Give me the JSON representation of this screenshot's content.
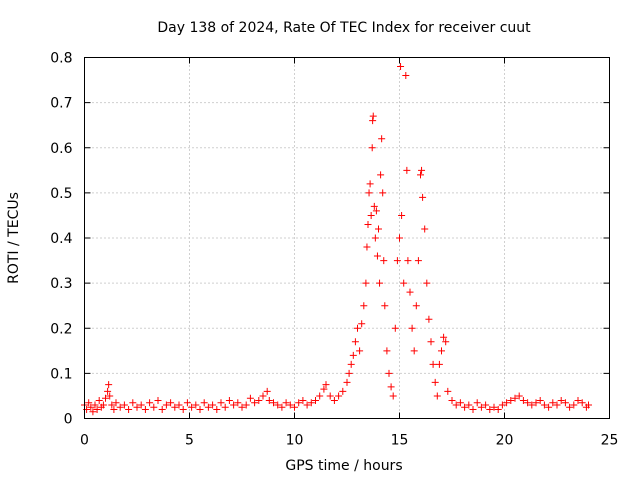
{
  "chart_data": {
    "type": "scatter",
    "title": "Day 138 of 2024, Rate Of TEC Index for receiver cuut",
    "xlabel": "GPS time / hours",
    "ylabel": "ROTI / TECUs",
    "xlim": [
      0,
      25
    ],
    "ylim": [
      0,
      0.8
    ],
    "xticks": [
      0,
      5,
      10,
      15,
      20,
      25
    ],
    "yticks": [
      0,
      0.1,
      0.2,
      0.3,
      0.4,
      0.5,
      0.6,
      0.7,
      0.8
    ],
    "grid": true,
    "marker": "+",
    "color": "#ff0000",
    "series": [
      {
        "name": "ROTI",
        "points": [
          [
            0.0,
            0.03
          ],
          [
            0.1,
            0.02
          ],
          [
            0.2,
            0.035
          ],
          [
            0.3,
            0.025
          ],
          [
            0.4,
            0.015
          ],
          [
            0.5,
            0.03
          ],
          [
            0.6,
            0.02
          ],
          [
            0.7,
            0.04
          ],
          [
            0.8,
            0.025
          ],
          [
            0.9,
            0.03
          ],
          [
            1.0,
            0.045
          ],
          [
            1.1,
            0.06
          ],
          [
            1.15,
            0.075
          ],
          [
            1.2,
            0.05
          ],
          [
            1.3,
            0.03
          ],
          [
            1.4,
            0.02
          ],
          [
            1.5,
            0.035
          ],
          [
            1.7,
            0.025
          ],
          [
            1.9,
            0.03
          ],
          [
            2.1,
            0.02
          ],
          [
            2.3,
            0.035
          ],
          [
            2.5,
            0.025
          ],
          [
            2.7,
            0.03
          ],
          [
            2.9,
            0.02
          ],
          [
            3.1,
            0.035
          ],
          [
            3.3,
            0.025
          ],
          [
            3.5,
            0.04
          ],
          [
            3.7,
            0.02
          ],
          [
            3.9,
            0.03
          ],
          [
            4.1,
            0.035
          ],
          [
            4.3,
            0.025
          ],
          [
            4.5,
            0.03
          ],
          [
            4.7,
            0.02
          ],
          [
            4.9,
            0.035
          ],
          [
            5.1,
            0.025
          ],
          [
            5.3,
            0.03
          ],
          [
            5.5,
            0.02
          ],
          [
            5.7,
            0.035
          ],
          [
            5.9,
            0.025
          ],
          [
            6.1,
            0.03
          ],
          [
            6.3,
            0.02
          ],
          [
            6.5,
            0.035
          ],
          [
            6.7,
            0.025
          ],
          [
            6.9,
            0.04
          ],
          [
            7.1,
            0.03
          ],
          [
            7.3,
            0.035
          ],
          [
            7.5,
            0.025
          ],
          [
            7.7,
            0.03
          ],
          [
            7.9,
            0.045
          ],
          [
            8.1,
            0.035
          ],
          [
            8.3,
            0.04
          ],
          [
            8.5,
            0.05
          ],
          [
            8.7,
            0.06
          ],
          [
            8.8,
            0.04
          ],
          [
            9.0,
            0.035
          ],
          [
            9.2,
            0.03
          ],
          [
            9.4,
            0.025
          ],
          [
            9.6,
            0.035
          ],
          [
            9.8,
            0.03
          ],
          [
            10.0,
            0.025
          ],
          [
            10.2,
            0.035
          ],
          [
            10.4,
            0.04
          ],
          [
            10.6,
            0.03
          ],
          [
            10.8,
            0.035
          ],
          [
            11.0,
            0.04
          ],
          [
            11.2,
            0.05
          ],
          [
            11.4,
            0.065
          ],
          [
            11.5,
            0.075
          ],
          [
            11.7,
            0.05
          ],
          [
            11.9,
            0.04
          ],
          [
            12.1,
            0.05
          ],
          [
            12.3,
            0.06
          ],
          [
            12.5,
            0.08
          ],
          [
            12.6,
            0.1
          ],
          [
            12.7,
            0.12
          ],
          [
            12.8,
            0.14
          ],
          [
            12.9,
            0.17
          ],
          [
            13.0,
            0.2
          ],
          [
            13.1,
            0.15
          ],
          [
            13.2,
            0.21
          ],
          [
            13.3,
            0.25
          ],
          [
            13.4,
            0.3
          ],
          [
            13.45,
            0.38
          ],
          [
            13.5,
            0.43
          ],
          [
            13.55,
            0.5
          ],
          [
            13.6,
            0.52
          ],
          [
            13.65,
            0.45
          ],
          [
            13.7,
            0.6
          ],
          [
            13.72,
            0.66
          ],
          [
            13.75,
            0.67
          ],
          [
            13.8,
            0.47
          ],
          [
            13.85,
            0.4
          ],
          [
            13.9,
            0.46
          ],
          [
            13.95,
            0.36
          ],
          [
            14.0,
            0.42
          ],
          [
            14.05,
            0.3
          ],
          [
            14.1,
            0.54
          ],
          [
            14.15,
            0.62
          ],
          [
            14.2,
            0.5
          ],
          [
            14.25,
            0.35
          ],
          [
            14.3,
            0.25
          ],
          [
            14.4,
            0.15
          ],
          [
            14.5,
            0.1
          ],
          [
            14.6,
            0.07
          ],
          [
            14.7,
            0.05
          ],
          [
            14.8,
            0.2
          ],
          [
            14.9,
            0.35
          ],
          [
            15.0,
            0.4
          ],
          [
            15.05,
            0.78
          ],
          [
            15.1,
            0.45
          ],
          [
            15.2,
            0.3
          ],
          [
            15.3,
            0.76
          ],
          [
            15.35,
            0.55
          ],
          [
            15.4,
            0.35
          ],
          [
            15.5,
            0.28
          ],
          [
            15.6,
            0.2
          ],
          [
            15.7,
            0.15
          ],
          [
            15.8,
            0.25
          ],
          [
            15.9,
            0.35
          ],
          [
            16.0,
            0.54
          ],
          [
            16.05,
            0.55
          ],
          [
            16.1,
            0.49
          ],
          [
            16.2,
            0.42
          ],
          [
            16.3,
            0.3
          ],
          [
            16.4,
            0.22
          ],
          [
            16.5,
            0.17
          ],
          [
            16.6,
            0.12
          ],
          [
            16.7,
            0.08
          ],
          [
            16.8,
            0.05
          ],
          [
            16.9,
            0.12
          ],
          [
            17.0,
            0.15
          ],
          [
            17.1,
            0.18
          ],
          [
            17.2,
            0.17
          ],
          [
            17.3,
            0.06
          ],
          [
            17.5,
            0.04
          ],
          [
            17.7,
            0.03
          ],
          [
            17.9,
            0.035
          ],
          [
            18.1,
            0.025
          ],
          [
            18.3,
            0.03
          ],
          [
            18.5,
            0.02
          ],
          [
            18.7,
            0.035
          ],
          [
            18.9,
            0.025
          ],
          [
            19.1,
            0.03
          ],
          [
            19.3,
            0.02
          ],
          [
            19.5,
            0.025
          ],
          [
            19.7,
            0.02
          ],
          [
            19.9,
            0.03
          ],
          [
            20.1,
            0.035
          ],
          [
            20.3,
            0.04
          ],
          [
            20.5,
            0.045
          ],
          [
            20.7,
            0.05
          ],
          [
            20.9,
            0.04
          ],
          [
            21.1,
            0.035
          ],
          [
            21.3,
            0.03
          ],
          [
            21.5,
            0.035
          ],
          [
            21.7,
            0.04
          ],
          [
            21.9,
            0.03
          ],
          [
            22.1,
            0.025
          ],
          [
            22.3,
            0.035
          ],
          [
            22.5,
            0.03
          ],
          [
            22.7,
            0.04
          ],
          [
            22.9,
            0.035
          ],
          [
            23.1,
            0.025
          ],
          [
            23.3,
            0.03
          ],
          [
            23.5,
            0.04
          ],
          [
            23.7,
            0.035
          ],
          [
            23.9,
            0.025
          ],
          [
            24.0,
            0.03
          ]
        ]
      }
    ]
  }
}
